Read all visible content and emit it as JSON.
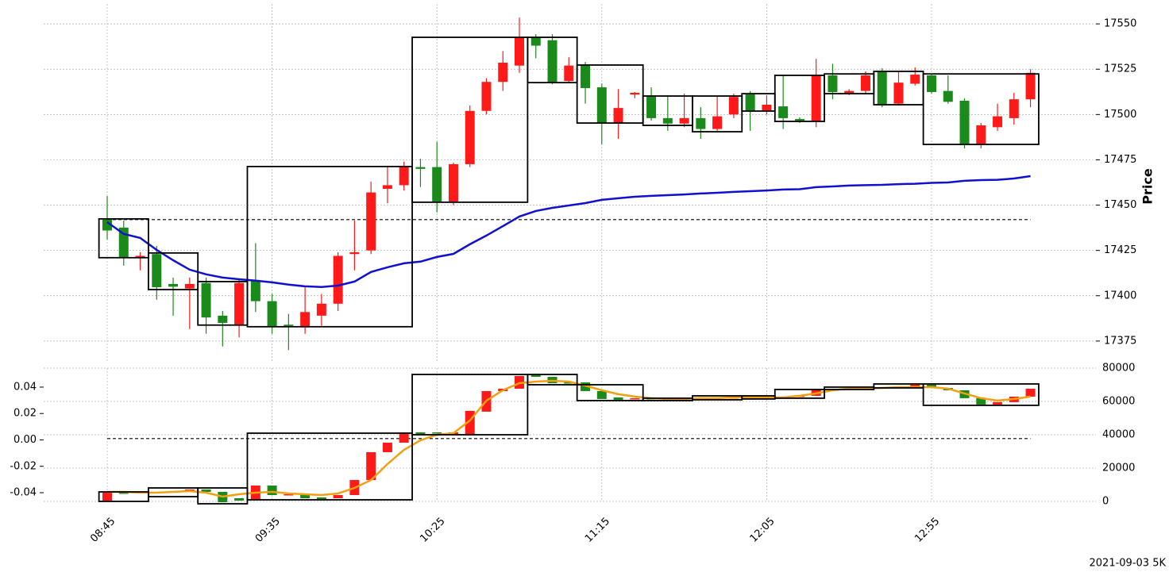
{
  "chart_data": [
    {
      "type": "candlestick",
      "ylabel": "Price",
      "categories": [
        "08:45",
        null,
        null,
        null,
        null,
        null,
        null,
        null,
        null,
        null,
        "09:35",
        null,
        null,
        null,
        null,
        null,
        null,
        null,
        null,
        null,
        "10:25",
        null,
        null,
        null,
        null,
        null,
        null,
        null,
        null,
        null,
        "11:15",
        null,
        null,
        null,
        null,
        null,
        null,
        null,
        null,
        null,
        "12:05",
        null,
        null,
        null,
        null,
        null,
        null,
        null,
        null,
        null,
        "12:55",
        null,
        null,
        null,
        null,
        null,
        null
      ],
      "open": [
        17442,
        17437.6,
        17421,
        17423,
        17406.5,
        17404,
        17407,
        17389,
        17383.7,
        17408,
        17397,
        17384,
        17383,
        17389,
        17395.6,
        17423,
        17425,
        17459,
        17461,
        17471,
        17471,
        17452,
        17472.6,
        17502,
        17518,
        17527,
        17542.6,
        17541,
        17518.5,
        17527,
        17515,
        17495.3,
        17511,
        17510,
        17498,
        17495,
        17498,
        17492,
        17500,
        17511.5,
        17502,
        17504.5,
        17497.5,
        17496.6,
        17521.6,
        17511.5,
        17513,
        17523.8,
        17506,
        17517,
        17521.6,
        17513,
        17507.6,
        17483.5,
        17493,
        17498,
        17508.4
      ],
      "high": [
        17455,
        17441.5,
        17424,
        17427.5,
        17410,
        17410,
        17410,
        17391.6,
        17408.7,
        17429,
        17401,
        17390,
        17405,
        17401,
        17424,
        17441.5,
        17463,
        17471,
        17474,
        17475.6,
        17485,
        17473.4,
        17505,
        17520,
        17535,
        17553.5,
        17544.3,
        17544.3,
        17531.6,
        17529,
        17517,
        17514,
        17512.4,
        17515,
        17510.6,
        17511.5,
        17504,
        17510,
        17511.5,
        17513,
        17510.6,
        17521.6,
        17498.4,
        17530.7,
        17528,
        17514,
        17523.8,
        17525.5,
        17523.8,
        17526,
        17522.4,
        17521.6,
        17509,
        17495.3,
        17506,
        17512,
        17525
      ],
      "low": [
        17431,
        17416.6,
        17414,
        17397.8,
        17389,
        17381.6,
        17379,
        17372,
        17377,
        17391,
        17379,
        17370,
        17379,
        17383,
        17391.6,
        17414,
        17423,
        17451,
        17458,
        17460,
        17446,
        17450,
        17471,
        17500,
        17513,
        17523,
        17531,
        17516.7,
        17517.6,
        17506,
        17483.5,
        17486.6,
        17509,
        17496.6,
        17491,
        17493,
        17486.6,
        17491,
        17498,
        17491,
        17500,
        17492,
        17495.3,
        17493,
        17508.4,
        17510.6,
        17511.5,
        17504,
        17505,
        17516,
        17511.5,
        17506,
        17481.3,
        17481.3,
        17491,
        17494.4,
        17504
      ],
      "close": [
        17436,
        17421,
        17422,
        17404.7,
        17405,
        17406.5,
        17388,
        17385,
        17407,
        17397,
        17383,
        17383,
        17391,
        17395.6,
        17422,
        17424,
        17457,
        17461,
        17471,
        17470,
        17452,
        17472.6,
        17502,
        17518,
        17528.6,
        17542.6,
        17538,
        17517.6,
        17527,
        17514.6,
        17495.3,
        17503.6,
        17512,
        17498,
        17495,
        17498,
        17492,
        17499,
        17509.7,
        17502,
        17505.4,
        17498,
        17496.6,
        17521.6,
        17512.4,
        17513,
        17521.6,
        17505.4,
        17517.6,
        17522,
        17512.4,
        17507,
        17483.5,
        17494,
        17499,
        17508.4,
        17523
      ],
      "up_color": "#ff1a1a",
      "down_color": "#1a8a1a",
      "lines": [
        {
          "color": "#1010d0",
          "values": [
            17440.6,
            17434.1,
            17431.9,
            17425.3,
            17419.6,
            17414.4,
            17411.8,
            17410,
            17409.1,
            17408.3,
            17407.4,
            17406.1,
            17405.2,
            17404.8,
            17405.6,
            17407.8,
            17413.1,
            17415.7,
            17417.9,
            17418.8,
            17421.4,
            17423.1,
            17428.4,
            17433.2,
            17438.4,
            17443.7,
            17446.8,
            17448.5,
            17449.8,
            17451.1,
            17452.9,
            17453.8,
            17454.6,
            17455.1,
            17455.5,
            17455.9,
            17456.4,
            17456.8,
            17457.3,
            17457.7,
            17458.1,
            17458.6,
            17458.8,
            17459.9,
            17460.3,
            17460.8,
            17461,
            17461.2,
            17461.6,
            17461.8,
            17462.3,
            17462.5,
            17463.4,
            17463.8,
            17464,
            17464.7,
            17466
          ]
        }
      ],
      "hline": 17442,
      "boxes": [
        {
          "start": 0,
          "end": 2,
          "low": 17421,
          "high": 17442.4
        },
        {
          "start": 3,
          "end": 5,
          "low": 17403.4,
          "high": 17423.6
        },
        {
          "start": 6,
          "end": 8,
          "low": 17383.8,
          "high": 17407.8
        },
        {
          "start": 9,
          "end": 18,
          "low": 17382.9,
          "high": 17471.3
        },
        {
          "start": 19,
          "end": 25,
          "low": 17451.6,
          "high": 17542.6
        },
        {
          "start": 26,
          "end": 28,
          "low": 17517.6,
          "high": 17542.6
        },
        {
          "start": 29,
          "end": 32,
          "low": 17495.3,
          "high": 17527.3
        },
        {
          "start": 33,
          "end": 35,
          "low": 17494,
          "high": 17510.2
        },
        {
          "start": 36,
          "end": 38,
          "low": 17490.5,
          "high": 17510.2
        },
        {
          "start": 39,
          "end": 40,
          "low": 17501.9,
          "high": 17511.5
        },
        {
          "start": 41,
          "end": 43,
          "low": 17496.2,
          "high": 17521.6
        },
        {
          "start": 44,
          "end": 46,
          "low": 17511.5,
          "high": 17522.4
        },
        {
          "start": 47,
          "end": 49,
          "low": 17505.4,
          "high": 17523.8
        },
        {
          "start": 50,
          "end": 56,
          "low": 17483.5,
          "high": 17522.4
        }
      ],
      "ylim": [
        17364,
        17561
      ],
      "yticks": [
        17375,
        17400,
        17425,
        17450,
        17475,
        17500,
        17525,
        17550
      ],
      "grid": true,
      "footer": "2021-09-03 5K"
    },
    {
      "type": "candlestick",
      "open": [
        -0.046,
        -0.04,
        -0.04,
        -0.0394,
        -0.0394,
        -0.0388,
        -0.0376,
        -0.0394,
        -0.0442,
        -0.0454,
        -0.0346,
        -0.0418,
        -0.0418,
        -0.0436,
        -0.0442,
        -0.0418,
        -0.0304,
        -0.0093,
        -0.0021,
        0.0057,
        0.0057,
        0.0045,
        0.0045,
        0.0214,
        0.037,
        0.0388,
        0.0496,
        0.0478,
        0.0436,
        0.0436,
        0.037,
        0.0322,
        0.031,
        0.0316,
        0.031,
        0.031,
        0.0316,
        0.0322,
        0.0316,
        0.0322,
        0.0316,
        0.0322,
        0.0328,
        0.0334,
        0.0382,
        0.0388,
        0.0388,
        0.0394,
        0.04,
        0.04,
        0.0418,
        0.0394,
        0.0376,
        0.0316,
        0.0268,
        0.0286,
        0.0328
      ],
      "close": [
        -0.04,
        -0.0406,
        -0.0394,
        -0.04,
        -0.0388,
        -0.0376,
        -0.0394,
        -0.0472,
        -0.046,
        -0.0346,
        -0.0418,
        -0.0412,
        -0.0442,
        -0.0448,
        -0.0418,
        -0.0304,
        -0.0093,
        -0.0021,
        0.0057,
        0.0045,
        0.0051,
        0.0057,
        0.022,
        0.037,
        0.0388,
        0.0484,
        0.0478,
        0.043,
        0.043,
        0.037,
        0.031,
        0.0304,
        0.0316,
        0.031,
        0.0304,
        0.0316,
        0.0322,
        0.0316,
        0.0322,
        0.0316,
        0.0322,
        0.0328,
        0.0334,
        0.0382,
        0.0388,
        0.0382,
        0.0394,
        0.04,
        0.0394,
        0.0418,
        0.0394,
        0.0376,
        0.0316,
        0.0268,
        0.0286,
        0.0328,
        0.0388
      ],
      "up_color": "#ff1a1a",
      "down_color": "#1a8a1a",
      "lines": [
        {
          "color": "#f0a010",
          "values": [
            -0.0394,
            -0.0394,
            -0.04,
            -0.04,
            -0.0394,
            -0.0388,
            -0.04,
            -0.043,
            -0.0412,
            -0.04,
            -0.0394,
            -0.0406,
            -0.0412,
            -0.0418,
            -0.0406,
            -0.0364,
            -0.0304,
            -0.0183,
            -0.0075,
            -0.0003,
            0.0039,
            0.0051,
            0.0147,
            0.0298,
            0.0376,
            0.043,
            0.0442,
            0.0448,
            0.0442,
            0.0412,
            0.0376,
            0.0346,
            0.0328,
            0.0316,
            0.031,
            0.031,
            0.0316,
            0.0316,
            0.0322,
            0.0322,
            0.0322,
            0.0322,
            0.0334,
            0.0352,
            0.0376,
            0.0388,
            0.0388,
            0.0394,
            0.04,
            0.04,
            0.04,
            0.0388,
            0.0352,
            0.0316,
            0.0298,
            0.031,
            0.0328
          ]
        }
      ],
      "hline": 0.001,
      "boxes": [
        {
          "start": 0,
          "end": 2,
          "low": -0.0466,
          "high": -0.0394
        },
        {
          "start": 3,
          "end": 5,
          "low": -0.043,
          "high": -0.0364
        },
        {
          "start": 6,
          "end": 8,
          "low": -0.0484,
          "high": -0.0364
        },
        {
          "start": 9,
          "end": 18,
          "low": -0.0454,
          "high": 0.0051
        },
        {
          "start": 19,
          "end": 25,
          "low": 0.0039,
          "high": 0.0496
        },
        {
          "start": 26,
          "end": 28,
          "low": 0.0418,
          "high": 0.0496
        },
        {
          "start": 29,
          "end": 32,
          "low": 0.0298,
          "high": 0.0418
        },
        {
          "start": 33,
          "end": 35,
          "low": 0.0298,
          "high": 0.0316
        },
        {
          "start": 36,
          "end": 38,
          "low": 0.0304,
          "high": 0.0334
        },
        {
          "start": 39,
          "end": 40,
          "low": 0.031,
          "high": 0.0334
        },
        {
          "start": 41,
          "end": 43,
          "low": 0.0316,
          "high": 0.0382
        },
        {
          "start": 44,
          "end": 46,
          "low": 0.0382,
          "high": 0.04
        },
        {
          "start": 47,
          "end": 49,
          "low": 0.0394,
          "high": 0.0424
        },
        {
          "start": 50,
          "end": 56,
          "low": 0.0262,
          "high": 0.0424
        }
      ],
      "ylim": [
        -0.0466,
        0.0544
      ],
      "yticks": [
        -0.04,
        -0.02,
        {
          "value": 0,
          "label": "0.00"
        },
        0.02,
        0.04
      ],
      "y2lim": [
        0,
        80000
      ],
      "y2ticks": [
        0,
        20000,
        40000,
        60000,
        80000
      ],
      "grid": true
    }
  ]
}
